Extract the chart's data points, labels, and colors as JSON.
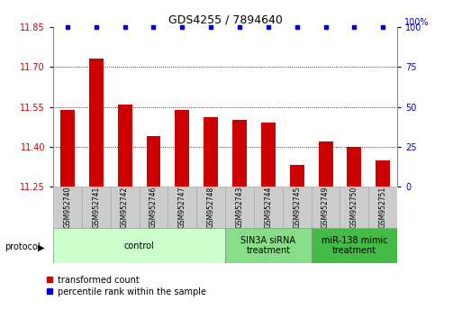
{
  "title": "GDS4255 / 7894640",
  "samples": [
    "GSM952740",
    "GSM952741",
    "GSM952742",
    "GSM952746",
    "GSM952747",
    "GSM952748",
    "GSM952743",
    "GSM952744",
    "GSM952745",
    "GSM952749",
    "GSM952750",
    "GSM952751"
  ],
  "red_values": [
    11.54,
    11.73,
    11.56,
    11.44,
    11.54,
    11.51,
    11.5,
    11.49,
    11.33,
    11.42,
    11.4,
    11.35
  ],
  "ylim_left": [
    11.25,
    11.85
  ],
  "ylim_right": [
    0,
    100
  ],
  "yticks_left": [
    11.25,
    11.4,
    11.55,
    11.7,
    11.85
  ],
  "yticks_right": [
    0,
    25,
    50,
    75,
    100
  ],
  "bar_color": "#cc0000",
  "dot_color": "#0000cc",
  "groups": [
    {
      "label": "control",
      "start": 0,
      "end": 6,
      "color": "#ccffcc"
    },
    {
      "label": "SIN3A siRNA\ntreatment",
      "start": 6,
      "end": 9,
      "color": "#88dd88"
    },
    {
      "label": "miR-138 mimic\ntreatment",
      "start": 9,
      "end": 12,
      "color": "#44bb44"
    }
  ],
  "legend_red_label": "transformed count",
  "legend_blue_label": "percentile rank within the sample",
  "protocol_label": "protocol",
  "bar_width": 0.5,
  "dot_size": 4,
  "right_pct_label": "100%"
}
